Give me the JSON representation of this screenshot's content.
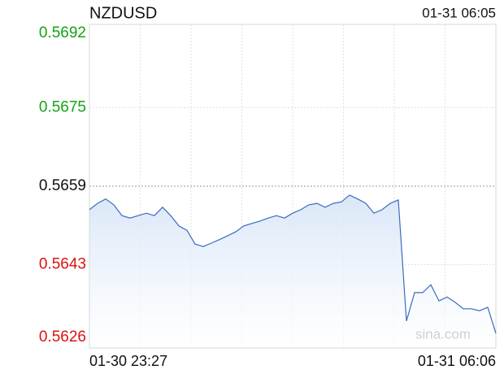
{
  "chart_data": {
    "type": "line",
    "title": "NZDUSD",
    "timestamp": "01-31 06:05",
    "watermark": "sina.com",
    "categories": [
      "01-30 23:27",
      null,
      null,
      null,
      null,
      null,
      null,
      null,
      null,
      null,
      null,
      null,
      null,
      null,
      null,
      null,
      null,
      null,
      null,
      null,
      null,
      null,
      null,
      null,
      null,
      null,
      null,
      null,
      null,
      null,
      null,
      null,
      null,
      null,
      null,
      null,
      null,
      null,
      null,
      null,
      null,
      null,
      null,
      null,
      null,
      null,
      null,
      null,
      null,
      null,
      "01-31 06:06"
    ],
    "values": [
      0.56542,
      0.56555,
      0.56564,
      0.56552,
      0.5653,
      0.56525,
      0.5653,
      0.56535,
      0.5653,
      0.56547,
      0.5653,
      0.56509,
      0.565,
      0.56472,
      0.56467,
      0.56474,
      0.56481,
      0.56489,
      0.56497,
      0.56509,
      0.56514,
      0.56519,
      0.56525,
      0.5653,
      0.56525,
      0.56535,
      0.56542,
      0.56552,
      0.56555,
      0.56547,
      0.56555,
      0.56558,
      0.56572,
      0.56564,
      0.56555,
      0.56535,
      0.56542,
      0.56555,
      0.56562,
      0.56315,
      0.56373,
      0.56373,
      0.56389,
      0.56356,
      0.56364,
      0.56353,
      0.5634,
      0.5634,
      0.56336,
      0.56343,
      0.5629
    ],
    "color": "#3a6bc0",
    "fill_color": "#dfe9f8",
    "ylim": [
      0.5626,
      0.5692
    ],
    "yticks": [
      0.5692,
      0.5675,
      0.5659,
      0.5643,
      0.5626
    ],
    "reference_line": 0.5659,
    "up_color": "#13a313",
    "down_color": "#e01010",
    "flat_color": "#111111",
    "grid": true
  }
}
